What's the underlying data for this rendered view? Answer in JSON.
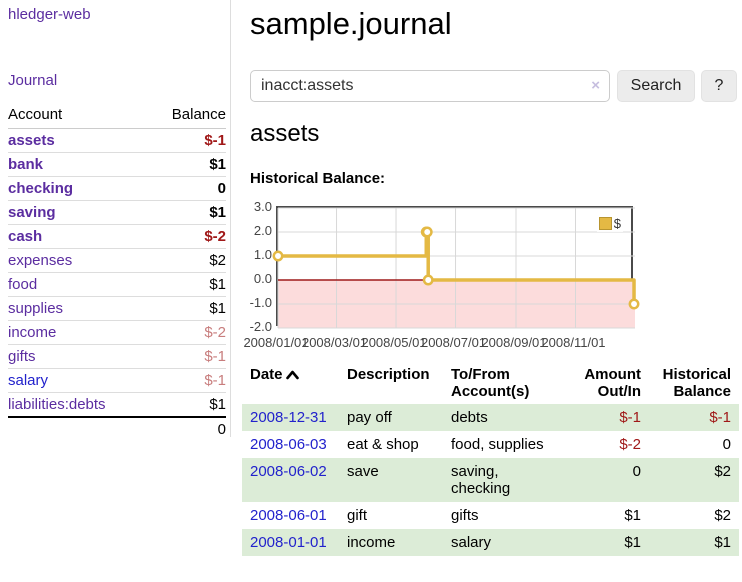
{
  "app": {
    "title": "hledger-web"
  },
  "sidebar": {
    "journal_link": "Journal",
    "headers": {
      "account": "Account",
      "balance": "Balance"
    },
    "rows": [
      {
        "account": "assets",
        "balance": "$-1"
      },
      {
        "account": "bank",
        "balance": "$1"
      },
      {
        "account": "checking",
        "balance": "0"
      },
      {
        "account": "saving",
        "balance": "$1"
      },
      {
        "account": "cash",
        "balance": "$-2"
      },
      {
        "account": "expenses",
        "balance": "$2"
      },
      {
        "account": "food",
        "balance": "$1"
      },
      {
        "account": "supplies",
        "balance": "$1"
      },
      {
        "account": "income",
        "balance": "$-2"
      },
      {
        "account": "gifts",
        "balance": "$-1"
      },
      {
        "account": "salary",
        "balance": "$-1"
      },
      {
        "account": "liabilities:debts",
        "balance": "$1"
      }
    ],
    "total": "0"
  },
  "main": {
    "title": "sample.journal",
    "search": {
      "value": "inacct:assets",
      "clear_icon": "×",
      "search_button": "Search",
      "help_button": "?"
    },
    "account_heading": "assets",
    "chart_section_label": "Historical Balance:"
  },
  "chart_data": {
    "type": "line",
    "step": true,
    "title": "Historical Balance",
    "series": [
      {
        "name": "$",
        "color": "#e4b944",
        "points": [
          [
            "2008-01-01",
            1
          ],
          [
            "2008-06-01",
            2
          ],
          [
            "2008-06-02",
            2
          ],
          [
            "2008-06-03",
            0
          ],
          [
            "2008-12-31",
            -1
          ]
        ]
      }
    ],
    "x_range": [
      "2008-01-01",
      "2009-01-01"
    ],
    "ylim": [
      -2,
      3
    ],
    "y_ticks": [
      "3.0",
      "2.0",
      "1.0",
      "0.0",
      "-1.0",
      "-2.0"
    ],
    "x_ticks": [
      "2008/01/01",
      "2008/03/01",
      "2008/05/01",
      "2008/07/01",
      "2008/09/01",
      "2008/11/01"
    ],
    "grid": true,
    "legend_position": "top-right",
    "negative_fill": "#fcdcdc",
    "zero_line_color": "#9e1a1a",
    "grid_color": "#d8d8d8"
  },
  "register": {
    "headers": {
      "date": "Date",
      "description": "Description",
      "accounts": "To/From\nAccount(s)",
      "amount": "Amount\nOut/In",
      "balance": "Historical\nBalance"
    },
    "rows": [
      {
        "date": "2008-12-31",
        "description": "pay off",
        "accounts": "debts",
        "amount": "$-1",
        "balance": "$-1"
      },
      {
        "date": "2008-06-03",
        "description": "eat & shop",
        "accounts": "food, supplies",
        "amount": "$-2",
        "balance": "0"
      },
      {
        "date": "2008-06-02",
        "description": "save",
        "accounts": "saving,\nchecking",
        "amount": "0",
        "balance": "$2"
      },
      {
        "date": "2008-06-01",
        "description": "gift",
        "accounts": "gifts",
        "amount": "$1",
        "balance": "$2"
      },
      {
        "date": "2008-01-01",
        "description": "income",
        "accounts": "salary",
        "amount": "$1",
        "balance": "$1"
      }
    ]
  }
}
